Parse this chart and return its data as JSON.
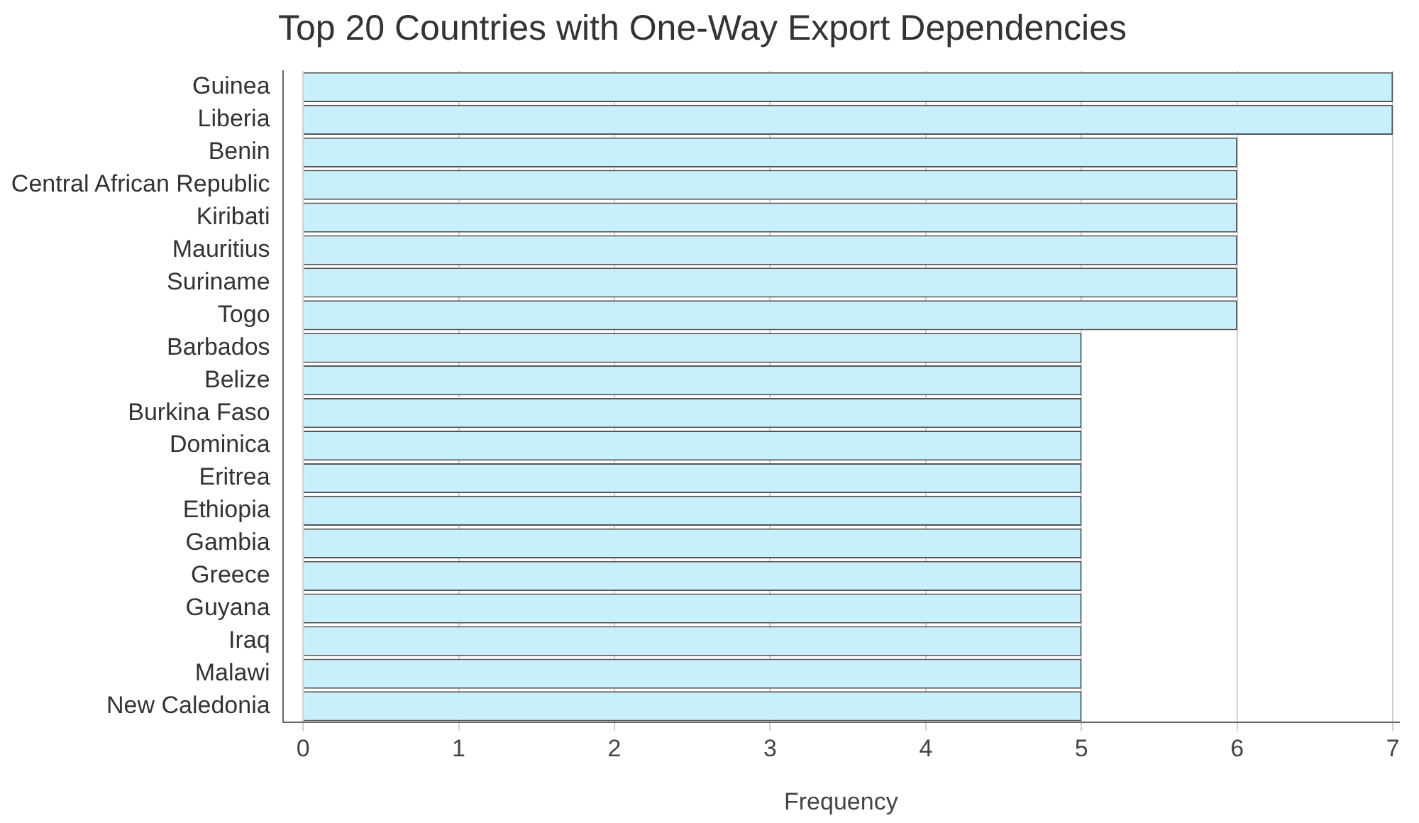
{
  "chart_data": {
    "type": "bar",
    "orientation": "horizontal",
    "title": "Top 20 Countries with One‑Way Export Dependencies",
    "xlabel": "Frequency",
    "categories": [
      "Guinea",
      "Liberia",
      "Benin",
      "Central African Republic",
      "Kiribati",
      "Mauritius",
      "Suriname",
      "Togo",
      "Barbados",
      "Belize",
      "Burkina Faso",
      "Dominica",
      "Eritrea",
      "Ethiopia",
      "Gambia",
      "Greece",
      "Guyana",
      "Iraq",
      "Malawi",
      "New Caledonia"
    ],
    "values": [
      7,
      7,
      6,
      6,
      6,
      6,
      6,
      6,
      5,
      5,
      5,
      5,
      5,
      5,
      5,
      5,
      5,
      5,
      5,
      5
    ],
    "color": "#c8f0fc",
    "xlim": [
      -0.13,
      7.04
    ],
    "xticks": [
      0,
      1,
      2,
      3,
      4,
      5,
      6,
      7
    ],
    "grid": "x"
  }
}
